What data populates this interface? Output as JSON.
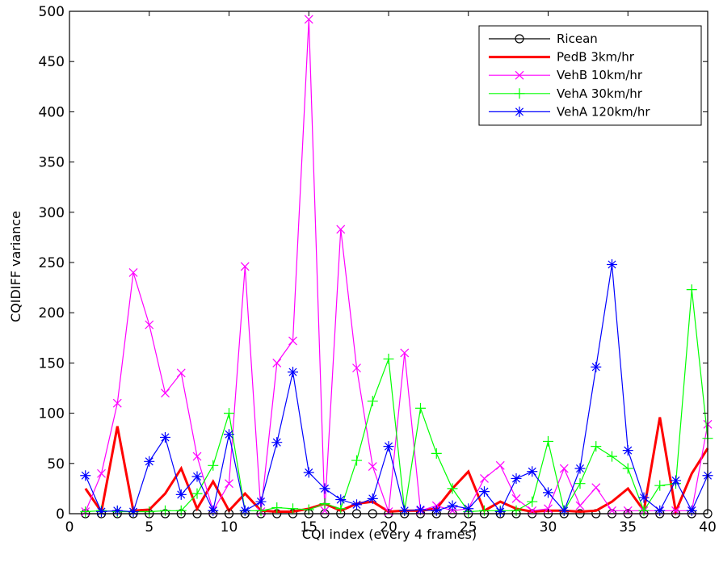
{
  "chart_data": {
    "type": "line",
    "title": "",
    "xlabel": "CQI index (every 4 frames)",
    "ylabel": "CQIDIFF variance",
    "xlim": [
      0,
      40
    ],
    "ylim": [
      0,
      500
    ],
    "xticks": [
      0,
      5,
      10,
      15,
      20,
      25,
      30,
      35,
      40
    ],
    "yticks": [
      0,
      50,
      100,
      150,
      200,
      250,
      300,
      350,
      400,
      450,
      500
    ],
    "grid": false,
    "legend_position": "top-right",
    "x": [
      1,
      2,
      3,
      4,
      5,
      6,
      7,
      8,
      9,
      10,
      11,
      12,
      13,
      14,
      15,
      16,
      17,
      18,
      19,
      20,
      21,
      22,
      23,
      24,
      25,
      26,
      27,
      28,
      29,
      30,
      31,
      32,
      33,
      34,
      35,
      36,
      37,
      38,
      39,
      40
    ],
    "series": [
      {
        "name": "Ricean",
        "color": "#000000",
        "marker": "circle",
        "line_width": 1.2,
        "values": [
          0,
          0,
          0,
          0,
          0,
          0,
          0,
          0,
          0,
          0,
          0,
          0,
          0,
          0,
          0,
          0,
          0,
          0,
          0,
          0,
          0,
          0,
          0,
          0,
          0,
          0,
          0,
          0,
          0,
          0,
          0,
          0,
          0,
          0,
          0,
          0,
          0,
          0,
          0,
          0
        ]
      },
      {
        "name": "PedB 3km/hr",
        "color": "#ff0000",
        "marker": "none",
        "line_width": 3,
        "values": [
          25,
          2,
          87,
          3,
          4,
          20,
          45,
          5,
          32,
          3,
          20,
          3,
          2,
          2,
          5,
          10,
          3,
          10,
          12,
          2,
          3,
          3,
          5,
          25,
          42,
          3,
          12,
          5,
          2,
          3,
          3,
          2,
          3,
          12,
          25,
          3,
          96,
          2,
          40,
          65
        ]
      },
      {
        "name": "VehB 10km/hr",
        "color": "#ff00ff",
        "marker": "x",
        "line_width": 1.2,
        "values": [
          2,
          40,
          110,
          240,
          188,
          120,
          140,
          57,
          3,
          30,
          246,
          2,
          150,
          172,
          492,
          3,
          283,
          145,
          47,
          2,
          160,
          3,
          8,
          3,
          5,
          35,
          48,
          15,
          3,
          5,
          45,
          8,
          26,
          3,
          3,
          3,
          3,
          3,
          3,
          89
        ]
      },
      {
        "name": "VehA 30km/hr",
        "color": "#00ff00",
        "marker": "plus",
        "line_width": 1.2,
        "values": [
          2,
          3,
          2,
          2,
          2,
          3,
          3,
          20,
          48,
          100,
          3,
          3,
          6,
          5,
          4,
          10,
          5,
          53,
          112,
          154,
          3,
          105,
          60,
          25,
          2,
          3,
          3,
          3,
          12,
          72,
          3,
          30,
          67,
          57,
          45,
          3,
          28,
          30,
          223,
          75
        ]
      },
      {
        "name": "VehA 120km/hr",
        "color": "#0000ff",
        "marker": "star",
        "line_width": 1.2,
        "values": [
          38,
          2,
          3,
          2,
          52,
          76,
          19,
          37,
          3,
          79,
          3,
          12,
          71,
          141,
          41,
          25,
          14,
          9,
          15,
          67,
          3,
          4,
          3,
          8,
          5,
          22,
          2,
          35,
          42,
          21,
          3,
          45,
          146,
          248,
          63,
          16,
          3,
          33,
          3,
          38
        ]
      }
    ]
  }
}
